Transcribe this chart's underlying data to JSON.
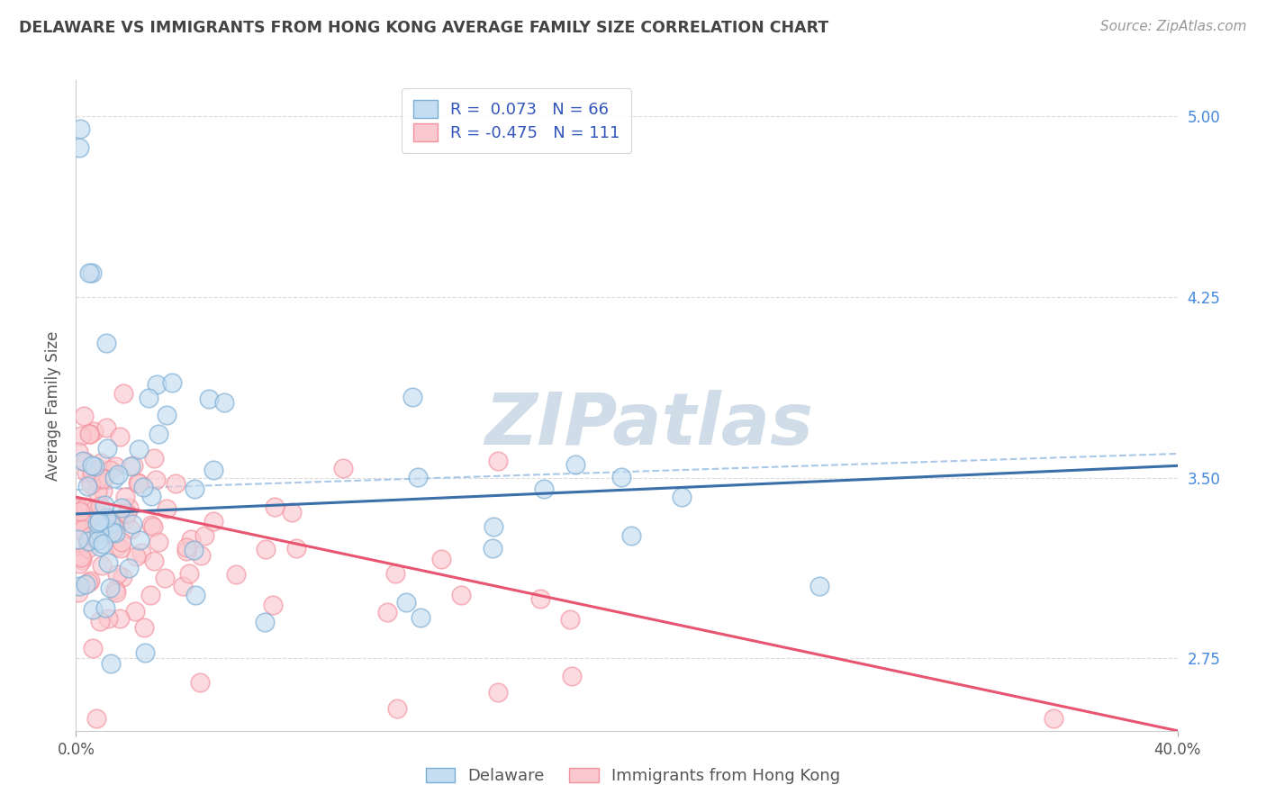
{
  "title": "DELAWARE VS IMMIGRANTS FROM HONG KONG AVERAGE FAMILY SIZE CORRELATION CHART",
  "source": "Source: ZipAtlas.com",
  "ylabel": "Average Family Size",
  "xlim": [
    0.0,
    0.4
  ],
  "ylim": [
    2.45,
    5.15
  ],
  "yticks": [
    2.75,
    3.5,
    4.25,
    5.0
  ],
  "xtick_labels": [
    "0.0%",
    "40.0%"
  ],
  "legend_labels": [
    "Delaware",
    "Immigrants from Hong Kong"
  ],
  "delaware_R": 0.073,
  "delaware_N": 66,
  "hk_R": -0.475,
  "hk_N": 111,
  "delaware_color": "#7aadd4",
  "hk_color": "#f4919e",
  "delaware_fill": "#c5ddf0",
  "hk_fill": "#fac8ce",
  "delaware_line_color": "#3a6faa",
  "hk_line_color": "#e85570",
  "dashed_line_color": "#aac8e8",
  "watermark": "ZIPatlas",
  "watermark_color": "#d0dce8",
  "background_color": "#FFFFFF",
  "grid_color": "#cccccc",
  "title_color": "#444444",
  "source_color": "#999999",
  "legend_text_color": "#3355BB",
  "seed": 7
}
